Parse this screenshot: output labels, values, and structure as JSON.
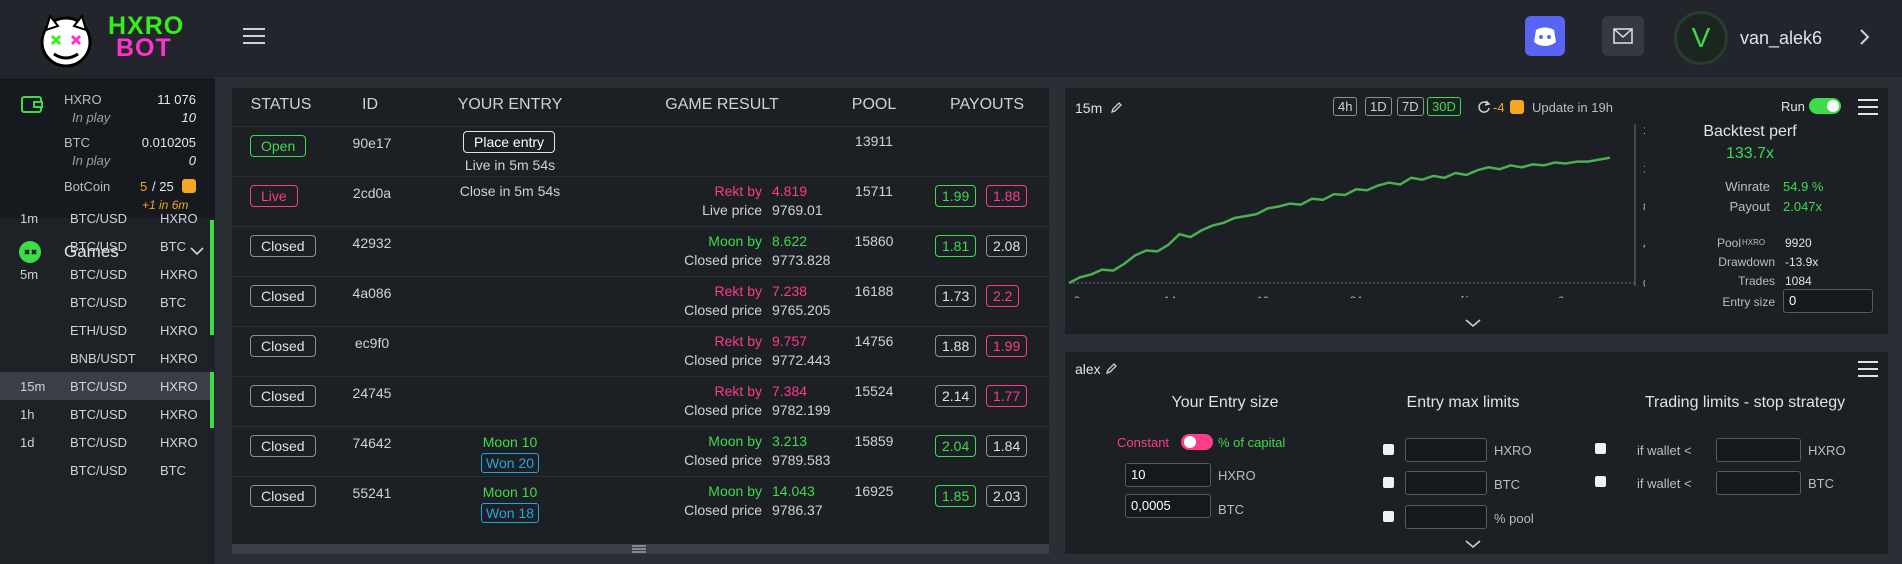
{
  "header": {
    "logo_line1": "HXRO",
    "logo_line2": "BOT",
    "username": "van_alek6",
    "avatar_letter": "V"
  },
  "wallet": {
    "hxro_label": "HXRO",
    "hxro_value": "11 076",
    "hxro_inplay_label": "In play",
    "hxro_inplay": "10",
    "btc_label": "BTC",
    "btc_value": "0.010205",
    "btc_inplay_label": "In play",
    "btc_inplay": "0",
    "botcoin_label": "BotCoin",
    "botcoin_value": "5",
    "botcoin_max": "/ 25",
    "botcoin_next": "+1 in 6m"
  },
  "games": {
    "title": "Games",
    "items": [
      {
        "tf": "1m",
        "pair": "BTC/USD",
        "coin": "HXRO"
      },
      {
        "tf": "",
        "pair": "BTC/USD",
        "coin": "BTC"
      },
      {
        "tf": "5m",
        "pair": "BTC/USD",
        "coin": "HXRO"
      },
      {
        "tf": "",
        "pair": "BTC/USD",
        "coin": "BTC"
      },
      {
        "tf": "",
        "pair": "ETH/USD",
        "coin": "HXRO"
      },
      {
        "tf": "",
        "pair": "BNB/USDT",
        "coin": "HXRO"
      },
      {
        "tf": "15m",
        "pair": "BTC/USD",
        "coin": "HXRO"
      },
      {
        "tf": "1h",
        "pair": "BTC/USD",
        "coin": "HXRO"
      },
      {
        "tf": "1d",
        "pair": "BTC/USD",
        "coin": "HXRO"
      },
      {
        "tf": "",
        "pair": "BTC/USD",
        "coin": "BTC"
      }
    ]
  },
  "table": {
    "headers": [
      "STATUS",
      "ID",
      "YOUR ENTRY",
      "GAME RESULT",
      "POOL",
      "PAYOUTS"
    ],
    "place_entry": "Place entry",
    "rows": [
      {
        "status": "Open",
        "id": "90e17",
        "entry": "Live in 5m 54s",
        "pool": "13911"
      },
      {
        "status": "Live",
        "id": "2cd0a",
        "entry": "Close in 5m 54s",
        "result_label": "Rekt by",
        "result_val": "4.819",
        "price_label": "Live price",
        "price": "9769.01",
        "pool": "15711",
        "pay1": "1.99",
        "pay2": "1.88"
      },
      {
        "status": "Closed",
        "id": "42932",
        "result_label": "Moon by",
        "result_val": "8.622",
        "price_label": "Closed price",
        "price": "9773.828",
        "pool": "15860",
        "pay1": "1.81",
        "pay2": "2.08"
      },
      {
        "status": "Closed",
        "id": "4a086",
        "result_label": "Rekt by",
        "result_val": "7.238",
        "price_label": "Closed price",
        "price": "9765.205",
        "pool": "16188",
        "pay1": "1.73",
        "pay2": "2.2"
      },
      {
        "status": "Closed",
        "id": "ec9f0",
        "result_label": "Rekt by",
        "result_val": "9.757",
        "price_label": "Closed price",
        "price": "9772.443",
        "pool": "14756",
        "pay1": "1.88",
        "pay2": "1.99"
      },
      {
        "status": "Closed",
        "id": "24745",
        "result_label": "Rekt by",
        "result_val": "7.384",
        "price_label": "Closed price",
        "price": "9782.199",
        "pool": "15524",
        "pay1": "2.14",
        "pay2": "1.77"
      },
      {
        "status": "Closed",
        "id": "74642",
        "entry": "Moon 10",
        "won": "Won 20",
        "result_label": "Moon by",
        "result_val": "3.213",
        "price_label": "Closed price",
        "price": "9789.583",
        "pool": "15859",
        "pay1": "2.04",
        "pay2": "1.84"
      },
      {
        "status": "Closed",
        "id": "55241",
        "entry": "Moon 10",
        "won": "Won 18",
        "result_label": "Moon by",
        "result_val": "14.043",
        "price_label": "Closed price",
        "price": "9786.37",
        "pool": "16925",
        "pay1": "1.85",
        "pay2": "2.03"
      }
    ]
  },
  "backtest": {
    "timeframe": "15m",
    "ranges": [
      "4h",
      "1D",
      "7D",
      "30D"
    ],
    "refresh_count": "-4",
    "update_text": "Update in 19h",
    "run_label": "Run",
    "title": "Backtest perf",
    "perf": "133.7x",
    "winrate_label": "Winrate",
    "winrate": "54.9 %",
    "payout_label": "Payout",
    "payout": "2.047x",
    "pool_label": "Pool",
    "pool_unit": "HXRO",
    "pool": "9920",
    "drawdown_label": "Drawdown",
    "drawdown": "-13.9x",
    "trades_label": "Trades",
    "trades": "1084",
    "entry_label": "Entry size",
    "entry_value": "0"
  },
  "chart_data": {
    "type": "line",
    "x_ticks": [
      "9",
      "14",
      "19",
      "24",
      "févr.",
      "6"
    ],
    "y_ticks": [
      "0x",
      "40x",
      "80x",
      "120x",
      "160x"
    ],
    "ylim": [
      0,
      160
    ],
    "values": [
      0,
      6,
      9,
      14,
      13,
      20,
      29,
      34,
      33,
      40,
      51,
      48,
      55,
      60,
      63,
      68,
      70,
      72,
      78,
      80,
      83,
      82,
      88,
      87,
      93,
      92,
      98,
      97,
      102,
      105,
      103,
      110,
      108,
      112,
      110,
      115,
      113,
      118,
      121,
      119,
      123,
      121,
      124,
      123,
      126,
      125,
      127,
      127,
      129,
      131
    ]
  },
  "strategy": {
    "name": "alex",
    "entry_title": "Your Entry size",
    "constant_label": "Constant",
    "capital_label": "% of capital",
    "hxro_amount": "10",
    "hxro_unit": "HXRO",
    "btc_amount": "0,0005",
    "btc_unit": "BTC",
    "max_title": "Entry max limits",
    "max_units": [
      "HXRO",
      "BTC",
      "% pool"
    ],
    "stop_title": "Trading limits - stop strategy",
    "stop_rows": [
      {
        "label": "if wallet <",
        "unit": "HXRO"
      },
      {
        "label": "if wallet <",
        "unit": "BTC"
      }
    ]
  }
}
